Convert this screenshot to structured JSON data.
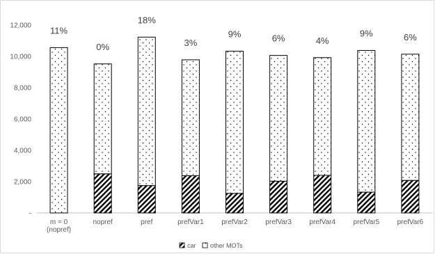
{
  "chart_data": {
    "type": "bar",
    "stacked": true,
    "categories": [
      "m = 0\n(nopref)",
      "nopref",
      "pref",
      "prefVar1",
      "prefVar2",
      "prefVar3",
      "prefVar4",
      "prefVar5",
      "prefVar6"
    ],
    "series": [
      {
        "name": "car",
        "values": [
          0,
          2500,
          1750,
          2380,
          1250,
          2030,
          2400,
          1330,
          2080
        ],
        "pattern": "diagonal-hatch"
      },
      {
        "name": "other MOTs",
        "values": [
          10560,
          7020,
          9480,
          7400,
          9080,
          8030,
          7520,
          9050,
          8060
        ],
        "pattern": "dots"
      }
    ],
    "annotations": [
      "11%",
      "0%",
      "18%",
      "3%",
      "9%",
      "6%",
      "4%",
      "9%",
      "6%"
    ],
    "yticks": [
      "12,000",
      "10,000",
      "8,000",
      "6,000",
      "4,000",
      "2,000",
      "-"
    ],
    "ytick_values": [
      12000,
      10000,
      8000,
      6000,
      4000,
      2000,
      0
    ],
    "ylim": [
      0,
      12000
    ],
    "grid": false,
    "legend_position": "bottom",
    "colors": {
      "axis": "#bfbfbf",
      "bar_stroke": "#000000",
      "text": "#595959"
    }
  }
}
